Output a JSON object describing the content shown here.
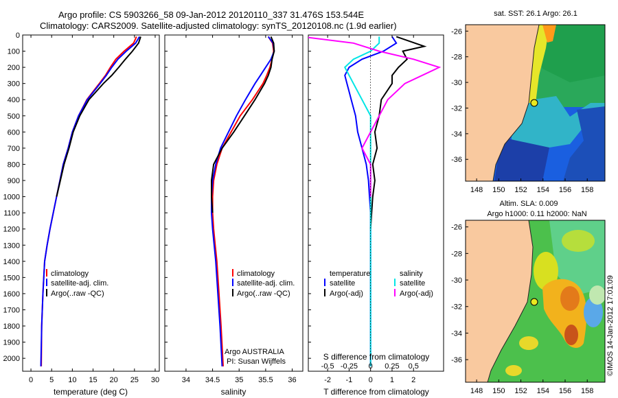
{
  "header": {
    "line1": "Argo profile: CS 5903266_58 09-Jan-2012 20120110_337 31.476S 153.544E",
    "line2": "Climatology: CARS2009. Satellite-adjusted climatology: synTS_20120108.nc (1.9d earlier)"
  },
  "colors": {
    "climatology": "#ff0000",
    "satellite": "#0000ff",
    "argo": "#000000",
    "salinity_satellite": "#00e5e5",
    "salinity_argo": "#ff00ff",
    "land": "#f9c99f"
  },
  "chart_data": [
    {
      "id": "temperature",
      "type": "line",
      "xlabel": "temperature (deg C)",
      "ylabel": "",
      "xlim": [
        -2,
        31
      ],
      "ylim": [
        2080,
        0
      ],
      "xticks": [
        "0",
        "5",
        "10",
        "15",
        "20",
        "25",
        "30"
      ],
      "yticks": [
        "0",
        "100",
        "200",
        "300",
        "400",
        "500",
        "600",
        "700",
        "800",
        "900",
        "1000",
        "1100",
        "1200",
        "1300",
        "1400",
        "1500",
        "1600",
        "1700",
        "1800",
        "1900",
        "2000"
      ],
      "legend": [
        "climatology",
        "satellite-adj. clim.",
        "Argo(..raw -QC)"
      ],
      "series": [
        {
          "name": "climatology",
          "color": "#ff0000",
          "x": [
            25.5,
            24.8,
            22.5,
            20.5,
            19.2,
            18.0,
            16.5,
            13.5,
            11.5,
            10.0,
            9.0,
            7.8,
            7.0,
            6.2,
            5.4,
            4.6,
            3.9,
            3.3,
            2.9,
            2.6,
            2.5
          ],
          "y": [
            10,
            50,
            100,
            150,
            200,
            250,
            300,
            400,
            500,
            600,
            700,
            800,
            900,
            1000,
            1100,
            1200,
            1300,
            1400,
            1600,
            1800,
            2050
          ]
        },
        {
          "name": "satellite-adj. clim.",
          "color": "#0000ff",
          "x": [
            26.2,
            25.3,
            23.0,
            21.0,
            19.5,
            18.2,
            16.7,
            13.6,
            11.5,
            10.0,
            9.0,
            7.8,
            7.0,
            6.2,
            5.4,
            4.6,
            3.9,
            3.3,
            2.9,
            2.6,
            2.4
          ],
          "y": [
            10,
            50,
            100,
            150,
            200,
            250,
            300,
            400,
            500,
            600,
            700,
            800,
            900,
            1000,
            1100,
            1200,
            1300,
            1400,
            1600,
            1800,
            2050
          ]
        },
        {
          "name": "Argo(..raw -QC)",
          "color": "#000000",
          "x": [
            26.5,
            26.0,
            24.5,
            22.8,
            21.2,
            19.5,
            17.5,
            14.0,
            11.8,
            10.2,
            9.2,
            8.0,
            7.1,
            6.2
          ],
          "y": [
            10,
            50,
            100,
            150,
            200,
            250,
            300,
            400,
            500,
            600,
            700,
            800,
            900,
            1000
          ]
        }
      ]
    },
    {
      "id": "salinity",
      "type": "line",
      "xlabel": "salinity",
      "xlim": [
        33.6,
        36.2
      ],
      "ylim": [
        2080,
        0
      ],
      "xticks": [
        "34",
        "34.5",
        "35",
        "35.5",
        "36"
      ],
      "legend": [
        "climatology",
        "satellite-adj. clim.",
        "Argo(..raw -QC)"
      ],
      "annotation": [
        "Argo AUSTRALIA",
        "PI: Susan Wijffels"
      ],
      "series": [
        {
          "name": "climatology",
          "color": "#ff0000",
          "x": [
            35.55,
            35.63,
            35.65,
            35.62,
            35.58,
            35.52,
            35.45,
            35.25,
            35.02,
            34.85,
            34.68,
            34.58,
            34.52,
            34.5,
            34.5,
            34.52,
            34.55,
            34.58,
            34.62,
            34.66,
            34.7
          ],
          "y": [
            10,
            50,
            100,
            150,
            200,
            250,
            300,
            400,
            500,
            600,
            700,
            800,
            900,
            1000,
            1100,
            1200,
            1300,
            1400,
            1600,
            1800,
            2050
          ]
        },
        {
          "name": "satellite-adj. clim.",
          "color": "#0000ff",
          "x": [
            35.55,
            35.64,
            35.66,
            35.6,
            35.5,
            35.4,
            35.3,
            35.12,
            34.95,
            34.8,
            34.65,
            34.56,
            34.5,
            34.48,
            34.48,
            34.5,
            34.53,
            34.56,
            34.6,
            34.64,
            34.68
          ],
          "y": [
            10,
            50,
            100,
            150,
            200,
            250,
            300,
            400,
            500,
            600,
            700,
            800,
            900,
            1000,
            1100,
            1200,
            1300,
            1400,
            1600,
            1800,
            2050
          ]
        },
        {
          "name": "Argo(..raw -QC)",
          "color": "#000000",
          "x": [
            35.6,
            35.65,
            35.66,
            35.62,
            35.6,
            35.55,
            35.48,
            35.3,
            35.1,
            34.9,
            34.68,
            34.52,
            34.48,
            34.48,
            34.5
          ],
          "y": [
            10,
            50,
            100,
            150,
            200,
            250,
            300,
            400,
            500,
            600,
            700,
            800,
            900,
            1000,
            1100
          ]
        }
      ]
    },
    {
      "id": "difference",
      "type": "line",
      "xlabel": "T difference from climatology",
      "xlabel_top": "S difference from climatology",
      "xlim": [
        -2.9,
        3.4
      ],
      "ylim": [
        2080,
        0
      ],
      "xticks": [
        "-2",
        "-1",
        "0",
        "1",
        "2"
      ],
      "sticks": [
        "-0.5",
        "-0.25",
        "0",
        "0.25",
        "0.5"
      ],
      "legend_t": [
        "temperature",
        "satellite",
        "Argo(-adj)"
      ],
      "legend_s": [
        "salinity",
        "satellite",
        "Argo(-adj)"
      ],
      "series": [
        {
          "name": "satellite",
          "color": "#0000ff",
          "x": [
            1.0,
            1.2,
            0.6,
            -0.4,
            -1.0,
            -1.2,
            -1.1,
            -0.9,
            -0.7,
            -0.6,
            -0.4,
            -0.2,
            -0.1,
            -0.05,
            0,
            0,
            0,
            0,
            0,
            0
          ],
          "y": [
            10,
            50,
            100,
            150,
            200,
            250,
            300,
            400,
            500,
            600,
            700,
            800,
            900,
            1000,
            1100,
            1200,
            1400,
            1600,
            1800,
            2050
          ]
        },
        {
          "name": "Argo(-adj)",
          "color": "#000000",
          "x": [
            1.2,
            2.5,
            1.5,
            1.7,
            1.3,
            1.0,
            1.0,
            0.5,
            0.4,
            0.2,
            0.3,
            0.1,
            0.2,
            0.1,
            0.05,
            0
          ],
          "y": [
            10,
            70,
            100,
            150,
            200,
            250,
            300,
            400,
            500,
            600,
            700,
            800,
            900,
            1000,
            1100,
            1200
          ]
        },
        {
          "name": "satellite",
          "color": "#00e5e5",
          "x": [
            0.1,
            0.1,
            0.0,
            -0.2,
            -0.3,
            -0.2,
            -0.1,
            0.0,
            0.0,
            0.0,
            0.0,
            0.0,
            0.0
          ],
          "y": [
            10,
            50,
            100,
            150,
            200,
            300,
            400,
            500,
            700,
            900,
            1200,
            1600,
            2050
          ]
        },
        {
          "name": "Argo(-adj)",
          "color": "#ff00ff",
          "x": [
            -0.8,
            -0.2,
            0.1,
            0.5,
            0.8,
            0.4,
            0.2,
            0.1,
            0.0,
            -0.1,
            0.0,
            0.0
          ],
          "y": [
            10,
            50,
            100,
            150,
            200,
            300,
            400,
            500,
            600,
            700,
            800,
            1000
          ]
        }
      ]
    },
    {
      "id": "sst-map",
      "type": "heatmap",
      "title": "sat. SST: 26.1  Argo: 26.1",
      "xticks": [
        "148",
        "150",
        "152",
        "154",
        "156",
        "158"
      ],
      "yticks": [
        "-26",
        "-28",
        "-30",
        "-32",
        "-34",
        "-36"
      ],
      "xlim": [
        147,
        159.6
      ],
      "ylim": [
        -37.7,
        -25.5
      ],
      "marker": [
        153.544,
        -31.476
      ]
    },
    {
      "id": "sla-map",
      "type": "heatmap",
      "title": "Altim. SLA: 0.009",
      "subtitle": "Argo h1000: 0.11  h2000: NaN",
      "xticks": [
        "148",
        "150",
        "152",
        "154",
        "156",
        "158"
      ],
      "yticks": [
        "-26",
        "-28",
        "-30",
        "-32",
        "-34",
        "-36"
      ],
      "xlim": [
        147,
        159.6
      ],
      "ylim": [
        -37.7,
        -25.5
      ],
      "marker": [
        153.544,
        -31.476
      ]
    }
  ],
  "credit": "©IMOS 14-Jan-2012 17:01:09"
}
